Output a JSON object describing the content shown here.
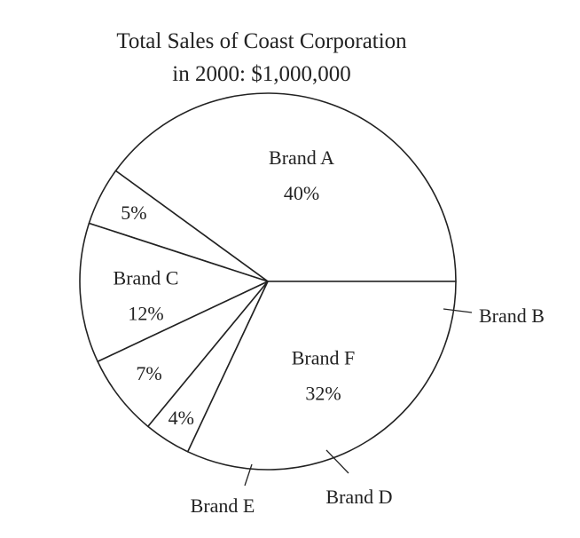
{
  "chart_data": {
    "type": "pie",
    "title_lines": [
      "Total Sales of Coast Corporation",
      "in 2000: $1,000,000"
    ],
    "slices": [
      {
        "name": "Brand A",
        "percent": 40,
        "percent_label": "40%"
      },
      {
        "name": "Brand B",
        "percent": 5,
        "percent_label": "5%"
      },
      {
        "name": "Brand C",
        "percent": 12,
        "percent_label": "12%"
      },
      {
        "name": "Brand D",
        "percent": 7,
        "percent_label": "7%"
      },
      {
        "name": "Brand E",
        "percent": 4,
        "percent_label": "4%"
      },
      {
        "name": "Brand F",
        "percent": 32,
        "percent_label": "32%"
      }
    ],
    "colors": {
      "fill": "#ffffff",
      "stroke": "#222222"
    }
  }
}
